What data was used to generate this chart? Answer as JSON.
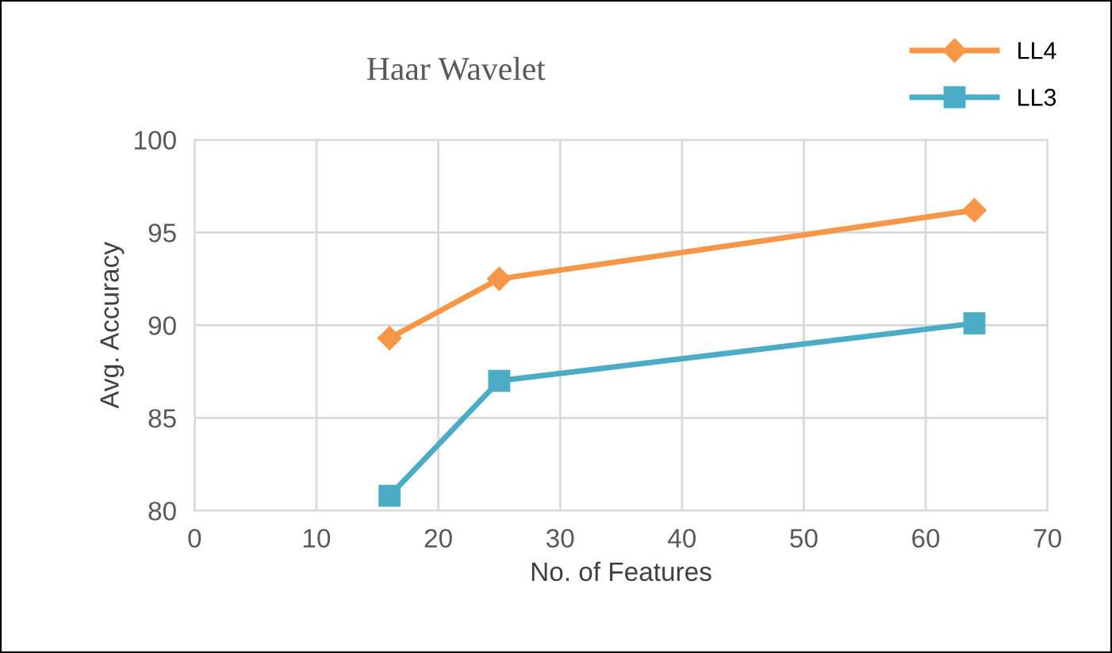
{
  "chart_data": {
    "type": "line",
    "title": "Haar Wavelet",
    "xlabel": "No. of Features",
    "ylabel": "Avg. Accuracy",
    "x": [
      16,
      25,
      64
    ],
    "series": [
      {
        "name": "LL4",
        "color": "#f79646",
        "marker": "diamond",
        "values": [
          89.3,
          92.5,
          96.2
        ]
      },
      {
        "name": "LL3",
        "color": "#4bacc6",
        "marker": "square",
        "values": [
          80.8,
          87.0,
          90.1
        ]
      }
    ],
    "xlim": [
      0,
      70
    ],
    "xticks": [
      0,
      10,
      20,
      30,
      40,
      50,
      60,
      70
    ],
    "ylim": [
      80,
      100
    ],
    "yticks": [
      80,
      85,
      90,
      95,
      100
    ],
    "grid": true,
    "legend": "top right",
    "line_style": "solid"
  }
}
